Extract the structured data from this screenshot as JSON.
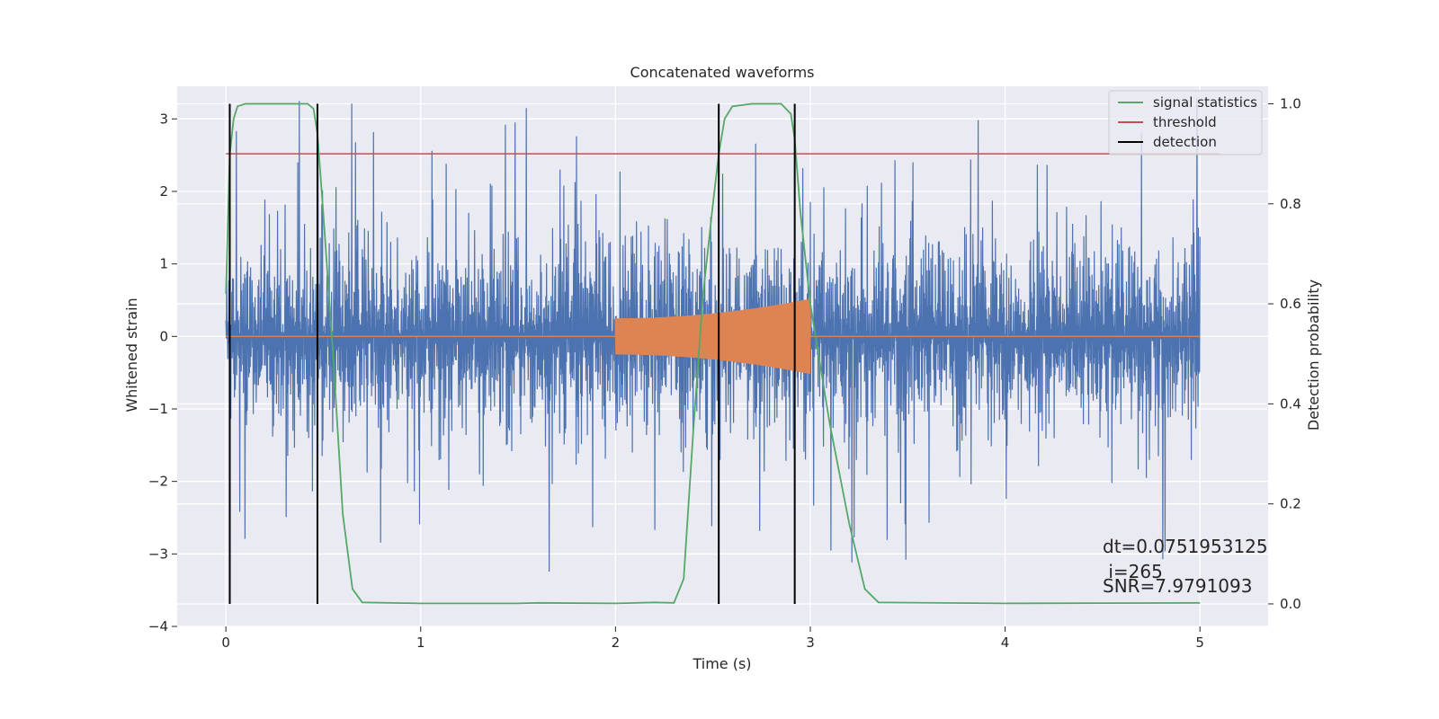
{
  "chart_data": {
    "type": "line",
    "title": "Concatenated waveforms",
    "xlabel": "Time (s)",
    "ylabel": "Whitened strain",
    "y2label": "Detection probability",
    "xlim": [
      -0.25,
      5.35
    ],
    "ylim": [
      -4.0,
      3.45
    ],
    "y2lim": [
      -0.045,
      1.035
    ],
    "xticks": [
      0,
      1,
      2,
      3,
      4,
      5
    ],
    "yticks": [
      -4,
      -3,
      -2,
      -1,
      0,
      1,
      2,
      3
    ],
    "y2ticks": [
      0.0,
      0.2,
      0.4,
      0.6,
      0.8,
      1.0
    ],
    "grid": true,
    "legend_position": "top-right",
    "legend": [
      "signal statistics",
      "threshold",
      "detection"
    ],
    "colors": {
      "strain": "#4c72b0",
      "injection": "#dd8452",
      "signal_statistics": "#55a868",
      "threshold": "#c44e52",
      "detection": "#000000",
      "axes_bg": "#eaeaf2"
    },
    "strain_noise": {
      "x_start": 0.0,
      "x_end": 5.0,
      "amplitude_typical": 1.3,
      "amplitude_max": 3.3
    },
    "injection": {
      "x_start": 2.0,
      "x_end": 3.0,
      "amp_start": 0.25,
      "amp_end": 0.52
    },
    "signal_statistics": {
      "x": [
        0,
        0.02,
        0.04,
        0.06,
        0.1,
        0.2,
        0.3,
        0.42,
        0.45,
        0.47,
        0.5,
        0.55,
        0.6,
        0.65,
        0.7,
        1.0,
        1.5,
        1.6,
        2.0,
        2.2,
        2.3,
        2.35,
        2.4,
        2.45,
        2.5,
        2.53,
        2.56,
        2.6,
        2.7,
        2.85,
        2.9,
        2.92,
        2.95,
        3.0,
        3.1,
        3.2,
        3.28,
        3.35,
        4.0,
        5.0
      ],
      "values": [
        0.62,
        0.9,
        0.97,
        0.995,
        1.0,
        1.0,
        1.0,
        1.0,
        0.99,
        0.94,
        0.78,
        0.5,
        0.18,
        0.03,
        0.003,
        0.001,
        0.001,
        0.002,
        0.001,
        0.003,
        0.002,
        0.05,
        0.35,
        0.62,
        0.8,
        0.9,
        0.97,
        0.995,
        1.0,
        1.0,
        0.98,
        0.93,
        0.78,
        0.6,
        0.36,
        0.16,
        0.03,
        0.003,
        0.001,
        0.002
      ]
    },
    "threshold": {
      "value": 0.9,
      "x_start": 0.0,
      "x_end": 5.1
    },
    "detections": [
      0.02,
      0.47,
      2.53,
      2.92
    ],
    "annotations": [
      "dt=0.0751953125",
      " i=265",
      "SNR=7.9791093"
    ]
  }
}
